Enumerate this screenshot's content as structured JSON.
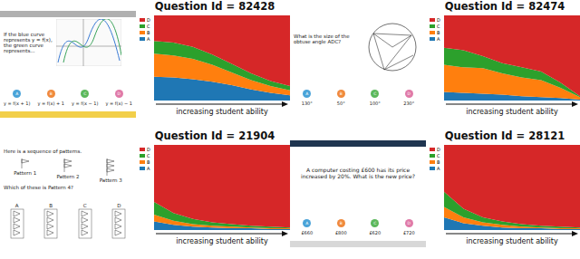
{
  "chart_data": [
    {
      "type": "area",
      "stacked": true,
      "title": "Question Id = 82428",
      "x_label": "increasing student ability",
      "tick_labels": false,
      "xlim": [
        1,
        8
      ],
      "ylim": [
        0,
        1
      ],
      "x": [
        1,
        2,
        3,
        4,
        5,
        6,
        7,
        8
      ],
      "series": [
        {
          "name": "A",
          "color": "#1f77b4",
          "values": [
            0.28,
            0.27,
            0.25,
            0.22,
            0.18,
            0.13,
            0.09,
            0.06
          ]
        },
        {
          "name": "B",
          "color": "#ff7f0e",
          "values": [
            0.27,
            0.26,
            0.24,
            0.2,
            0.15,
            0.11,
            0.08,
            0.06
          ]
        },
        {
          "name": "C",
          "color": "#2ca02c",
          "values": [
            0.15,
            0.15,
            0.14,
            0.12,
            0.1,
            0.08,
            0.06,
            0.05
          ]
        },
        {
          "name": "D",
          "color": "#d62728",
          "values": [
            0.3,
            0.32,
            0.37,
            0.46,
            0.57,
            0.68,
            0.77,
            0.83
          ]
        }
      ]
    },
    {
      "type": "area",
      "stacked": true,
      "title": "Question Id = 82474",
      "x_label": "increasing student ability",
      "tick_labels": false,
      "xlim": [
        1,
        8
      ],
      "ylim": [
        0,
        1
      ],
      "x": [
        1,
        2,
        3,
        4,
        5,
        6,
        7,
        8
      ],
      "series": [
        {
          "name": "A",
          "color": "#1f77b4",
          "values": [
            0.1,
            0.09,
            0.08,
            0.07,
            0.05,
            0.04,
            0.03,
            0.01
          ]
        },
        {
          "name": "B",
          "color": "#ff7f0e",
          "values": [
            0.32,
            0.3,
            0.3,
            0.25,
            0.22,
            0.2,
            0.12,
            0.03
          ]
        },
        {
          "name": "C",
          "color": "#2ca02c",
          "values": [
            0.2,
            0.2,
            0.14,
            0.12,
            0.12,
            0.1,
            0.06,
            0.01
          ]
        },
        {
          "name": "D",
          "color": "#d62728",
          "values": [
            0.38,
            0.41,
            0.48,
            0.56,
            0.61,
            0.66,
            0.79,
            0.95
          ]
        }
      ]
    },
    {
      "type": "area",
      "stacked": true,
      "title": "Question Id = 21904",
      "x_label": "increasing student ability",
      "tick_labels": false,
      "xlim": [
        1,
        8
      ],
      "ylim": [
        0,
        1
      ],
      "x": [
        1,
        2,
        3,
        4,
        5,
        6,
        7,
        8
      ],
      "series": [
        {
          "name": "A",
          "color": "#1f77b4",
          "values": [
            0.1,
            0.06,
            0.04,
            0.03,
            0.02,
            0.02,
            0.01,
            0.01
          ]
        },
        {
          "name": "B",
          "color": "#ff7f0e",
          "values": [
            0.08,
            0.05,
            0.03,
            0.02,
            0.02,
            0.01,
            0.01,
            0.01
          ]
        },
        {
          "name": "C",
          "color": "#2ca02c",
          "values": [
            0.15,
            0.09,
            0.06,
            0.04,
            0.03,
            0.02,
            0.02,
            0.01
          ]
        },
        {
          "name": "D",
          "color": "#d62728",
          "values": [
            0.67,
            0.8,
            0.87,
            0.91,
            0.93,
            0.95,
            0.96,
            0.97
          ]
        }
      ]
    },
    {
      "type": "area",
      "stacked": true,
      "title": "Question Id = 28121",
      "x_label": "increasing student ability",
      "tick_labels": false,
      "xlim": [
        1,
        8
      ],
      "ylim": [
        0,
        1
      ],
      "x": [
        1,
        2,
        3,
        4,
        5,
        6,
        7,
        8
      ],
      "series": [
        {
          "name": "A",
          "color": "#1f77b4",
          "values": [
            0.15,
            0.08,
            0.05,
            0.03,
            0.02,
            0.02,
            0.01,
            0.01
          ]
        },
        {
          "name": "B",
          "color": "#ff7f0e",
          "values": [
            0.12,
            0.07,
            0.04,
            0.03,
            0.02,
            0.01,
            0.01,
            0.01
          ]
        },
        {
          "name": "C",
          "color": "#2ca02c",
          "values": [
            0.18,
            0.1,
            0.06,
            0.04,
            0.03,
            0.02,
            0.02,
            0.01
          ]
        },
        {
          "name": "D",
          "color": "#d62728",
          "values": [
            0.55,
            0.75,
            0.85,
            0.9,
            0.93,
            0.95,
            0.96,
            0.97
          ]
        }
      ]
    }
  ],
  "questions": [
    {
      "text": "If the blue curve represents y = f(x), the green curve represents...",
      "choices": [
        "A",
        "B",
        "C",
        "D"
      ],
      "options": [
        "y = f(x + 1)",
        "y = f(x) + 1",
        "y = f(x − 1)",
        "y = f(x) − 1"
      ]
    },
    {
      "text": "What is the size of the obtuse angle ADC?",
      "choices": [
        "A",
        "B",
        "C",
        "D"
      ],
      "options": [
        "130°",
        "50°",
        "100°",
        "230°"
      ]
    },
    {
      "text": "Here is a sequence of patterns.",
      "patterns": [
        "Pattern 1",
        "Pattern 2",
        "Pattern 3"
      ],
      "prompt": "Which of these is Pattern 4?",
      "choices": [
        "A",
        "B",
        "C",
        "D"
      ]
    },
    {
      "text": "A computer costing £600 has its price increased by 20%. What is the new price?",
      "choices": [
        "A",
        "B",
        "C",
        "D"
      ],
      "options": [
        "£660",
        "£800",
        "£620",
        "£720"
      ]
    }
  ]
}
